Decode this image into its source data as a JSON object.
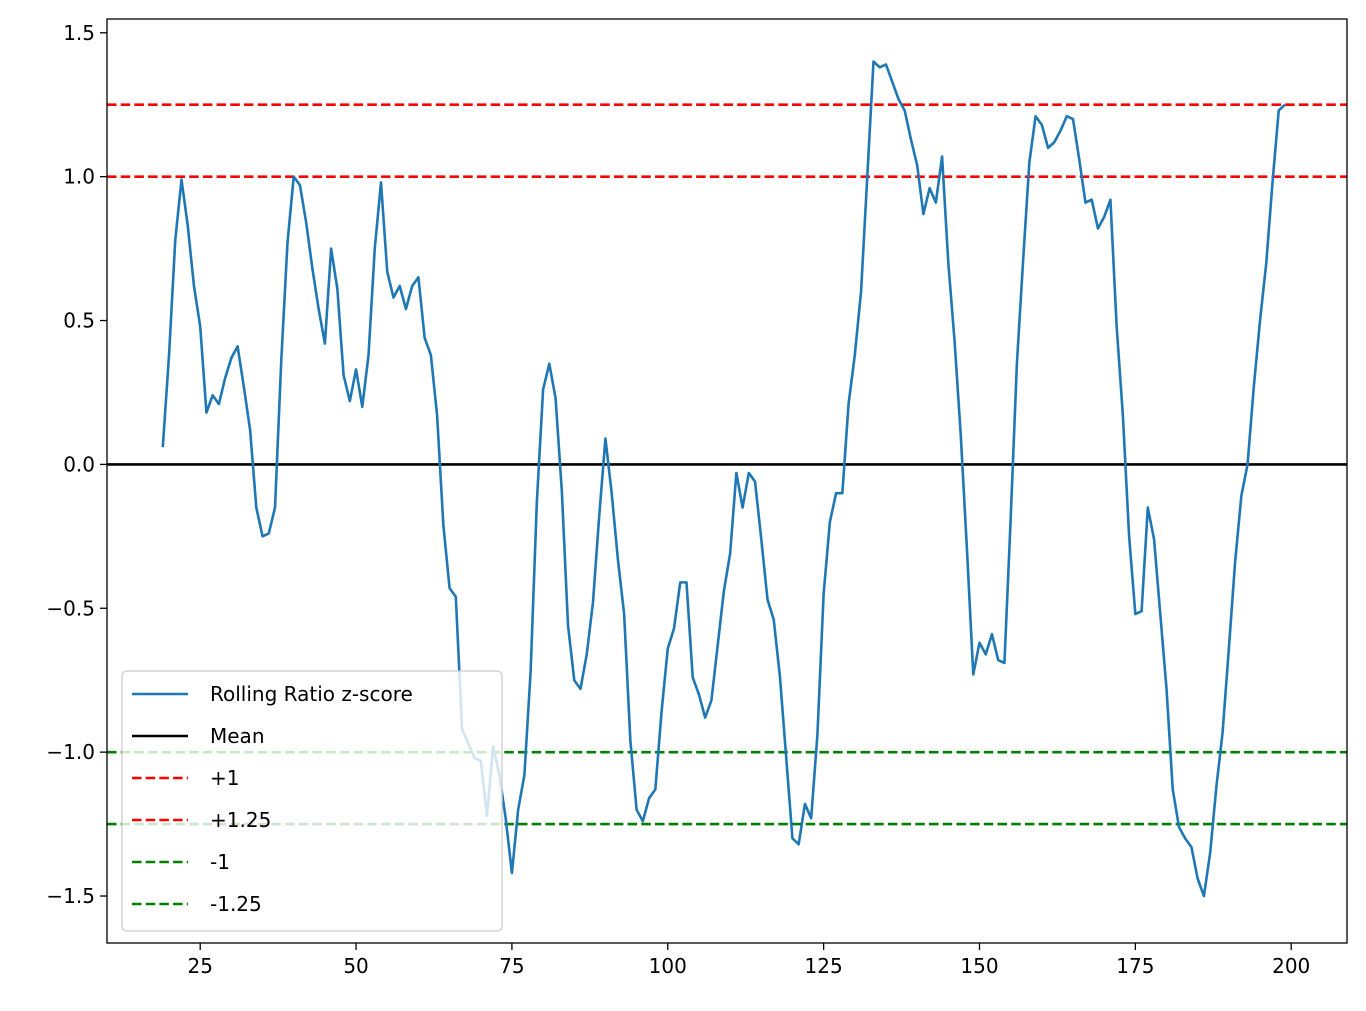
{
  "chart_data": {
    "type": "line",
    "title": "",
    "xlabel": "",
    "ylabel": "",
    "xlim": [
      10.05,
      208.95
    ],
    "ylim": [
      -1.6633,
      1.5479
    ],
    "xticks": [
      25,
      50,
      75,
      100,
      125,
      150,
      175,
      200
    ],
    "xtick_labels": [
      "25",
      "50",
      "75",
      "100",
      "125",
      "150",
      "175",
      "200"
    ],
    "yticks": [
      -1.5,
      -1.0,
      -0.5,
      0.0,
      0.5,
      1.0,
      1.5
    ],
    "ytick_labels": [
      "−1.5",
      "−1.0",
      "−0.5",
      "0.0",
      "0.5",
      "1.0",
      "1.5"
    ],
    "grid": false,
    "legend_position": "lower-left",
    "series": [
      {
        "name": "Rolling Ratio z-score",
        "color": "#1f77b4",
        "style": "solid",
        "x": [
          19,
          20,
          21,
          22,
          23,
          24,
          25,
          26,
          27,
          28,
          29,
          30,
          31,
          32,
          33,
          34,
          35,
          36,
          37,
          38,
          39,
          40,
          41,
          42,
          43,
          44,
          45,
          46,
          47,
          48,
          49,
          50,
          51,
          52,
          53,
          54,
          55,
          56,
          57,
          58,
          59,
          60,
          61,
          62,
          63,
          64,
          65,
          66,
          67,
          68,
          69,
          70,
          71,
          72,
          73,
          74,
          75,
          76,
          77,
          78,
          79,
          80,
          81,
          82,
          83,
          84,
          85,
          86,
          87,
          88,
          89,
          90,
          91,
          92,
          93,
          94,
          95,
          96,
          97,
          98,
          99,
          100,
          101,
          102,
          103,
          104,
          105,
          106,
          107,
          108,
          109,
          110,
          111,
          112,
          113,
          114,
          115,
          116,
          117,
          118,
          119,
          120,
          121,
          122,
          123,
          124,
          125,
          126,
          127,
          128,
          129,
          130,
          131,
          132,
          133,
          134,
          135,
          136,
          137,
          138,
          139,
          140,
          141,
          142,
          143,
          144,
          145,
          146,
          147,
          148,
          149,
          150,
          151,
          152,
          153,
          154,
          155,
          156,
          157,
          158,
          159,
          160,
          161,
          162,
          163,
          164,
          165,
          166,
          167,
          168,
          169,
          170,
          171,
          172,
          173,
          174,
          175,
          176,
          177,
          178,
          179,
          180,
          181,
          182,
          183,
          184,
          185,
          186,
          187,
          188,
          189,
          190,
          191,
          192,
          193,
          194,
          195,
          196,
          197,
          198,
          199
        ],
        "y": [
          0.06,
          0.38,
          0.78,
          0.99,
          0.83,
          0.62,
          0.48,
          0.18,
          0.24,
          0.21,
          0.3,
          0.37,
          0.41,
          0.27,
          0.12,
          -0.15,
          -0.25,
          -0.24,
          -0.15,
          0.36,
          0.77,
          1.0,
          0.97,
          0.84,
          0.68,
          0.54,
          0.42,
          0.75,
          0.61,
          0.31,
          0.22,
          0.33,
          0.2,
          0.38,
          0.75,
          0.98,
          0.67,
          0.58,
          0.62,
          0.54,
          0.62,
          0.65,
          0.44,
          0.38,
          0.17,
          -0.21,
          -0.43,
          -0.46,
          -0.92,
          -0.97,
          -1.02,
          -1.03,
          -1.22,
          -0.98,
          -1.08,
          -1.23,
          -1.42,
          -1.2,
          -1.08,
          -0.72,
          -0.13,
          0.26,
          0.35,
          0.23,
          -0.09,
          -0.56,
          -0.75,
          -0.78,
          -0.66,
          -0.48,
          -0.18,
          0.09,
          -0.1,
          -0.33,
          -0.52,
          -0.96,
          -1.2,
          -1.24,
          -1.16,
          -1.13,
          -0.86,
          -0.64,
          -0.57,
          -0.41,
          -0.41,
          -0.74,
          -0.8,
          -0.88,
          -0.82,
          -0.63,
          -0.44,
          -0.31,
          -0.03,
          -0.15,
          -0.03,
          -0.06,
          -0.26,
          -0.47,
          -0.54,
          -0.74,
          -1.02,
          -1.3,
          -1.32,
          -1.18,
          -1.23,
          -0.94,
          -0.45,
          -0.2,
          -0.1,
          -0.1,
          0.21,
          0.38,
          0.6,
          1.0,
          1.4,
          1.38,
          1.39,
          1.33,
          1.27,
          1.23,
          1.13,
          1.04,
          0.87,
          0.96,
          0.91,
          1.07,
          0.7,
          0.43,
          0.1,
          -0.3,
          -0.73,
          -0.62,
          -0.66,
          -0.59,
          -0.68,
          -0.69,
          -0.19,
          0.35,
          0.71,
          1.05,
          1.21,
          1.18,
          1.1,
          1.12,
          1.16,
          1.21,
          1.2,
          1.06,
          0.91,
          0.92,
          0.82,
          0.86,
          0.92,
          0.48,
          0.17,
          -0.25,
          -0.52,
          -0.51,
          -0.15,
          -0.26,
          -0.52,
          -0.78,
          -1.13,
          -1.26,
          -1.3,
          -1.33,
          -1.44,
          -1.5,
          -1.35,
          -1.12,
          -0.93,
          -0.64,
          -0.34,
          -0.11,
          0.0,
          0.27,
          0.5,
          0.7,
          0.98,
          1.23,
          1.25
        ]
      },
      {
        "name": "Mean",
        "color": "#000000",
        "style": "solid",
        "y_const": 0.0
      },
      {
        "name": "+1",
        "color": "#ff0000",
        "style": "dashed",
        "y_const": 1.0
      },
      {
        "name": "+1.25",
        "color": "#ff0000",
        "style": "dashed",
        "y_const": 1.25
      },
      {
        "name": "-1",
        "color": "#008000",
        "style": "dashed",
        "y_const": -1.0
      },
      {
        "name": "-1.25",
        "color": "#008000",
        "style": "dashed",
        "y_const": -1.25
      }
    ],
    "legend": [
      "Rolling Ratio z-score",
      "Mean",
      "+1",
      "+1.25",
      "-1",
      "-1.25"
    ]
  }
}
